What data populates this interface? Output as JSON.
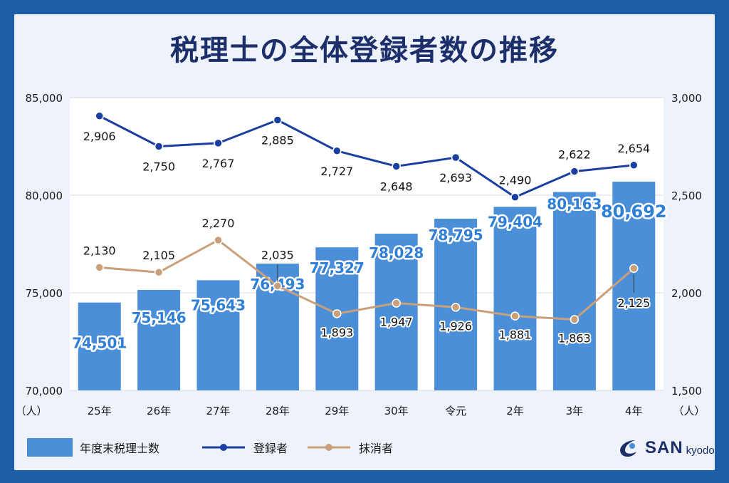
{
  "title": "税理士の全体登録者数の推移",
  "colors": {
    "bar": "#4a8fd8",
    "registered_line": "#1a3fa0",
    "cancelled_line": "#c9a07a",
    "frame": "#1f5fa8",
    "background": "#eef3fb"
  },
  "chart_data": {
    "type": "bar",
    "categories": [
      "25年",
      "26年",
      "27年",
      "28年",
      "29年",
      "30年",
      "令元",
      "2年",
      "3年",
      "4年"
    ],
    "left_axis": {
      "ticks": [
        "85,000",
        "80,000",
        "75,000",
        "70,000"
      ],
      "unit": "（人）",
      "ylim": [
        70000,
        85000
      ]
    },
    "right_axis": {
      "ticks": [
        "3,000",
        "2,500",
        "2,000",
        "1,500"
      ],
      "unit": "（人）",
      "ylim": [
        1500,
        3000
      ]
    },
    "series": [
      {
        "name": "年度末税理士数",
        "type": "bar",
        "axis": "left",
        "values": [
          74501,
          75146,
          75643,
          76493,
          77327,
          78028,
          78795,
          79404,
          80163,
          80692
        ],
        "labels": [
          "74,501",
          "75,146",
          "75,643",
          "76,493",
          "77,327",
          "78,028",
          "78,795",
          "79,404",
          "80,163",
          "80,692"
        ]
      },
      {
        "name": "登録者",
        "type": "line",
        "axis": "right",
        "values": [
          2906,
          2750,
          2767,
          2885,
          2727,
          2648,
          2693,
          2490,
          2622,
          2654
        ],
        "labels": [
          "2,906",
          "2,750",
          "2,767",
          "2,885",
          "2,727",
          "2,648",
          "2,693",
          "2,490",
          "2,622",
          "2,654"
        ]
      },
      {
        "name": "抹消者",
        "type": "line",
        "axis": "right",
        "values": [
          2130,
          2105,
          2270,
          2035,
          1893,
          1947,
          1926,
          1881,
          1863,
          2125
        ],
        "labels": [
          "2,130",
          "2,105",
          "2,270",
          "2,035",
          "1,893",
          "1,947",
          "1,926",
          "1,881",
          "1,863",
          "2,125"
        ]
      }
    ],
    "legend_position": "bottom-left",
    "grid": true
  },
  "logo": {
    "main": "SAN",
    "sub": "kyodo"
  }
}
